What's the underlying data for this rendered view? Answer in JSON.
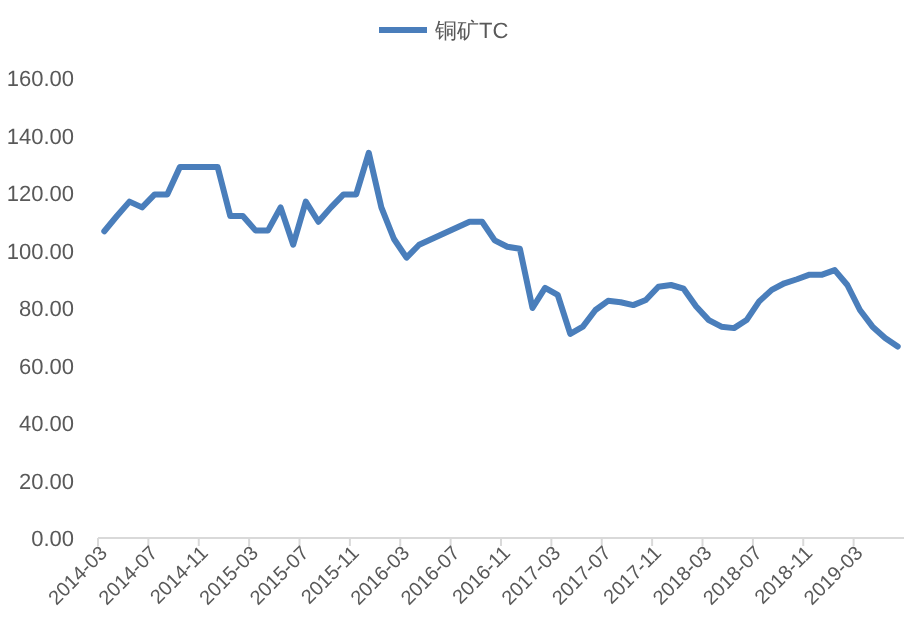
{
  "chart_data": {
    "type": "line",
    "legend": "top",
    "grid": false,
    "marker": "none",
    "line_style": "solid",
    "categories": [
      "2014-03",
      null,
      null,
      null,
      "2014-07",
      null,
      null,
      null,
      "2014-11",
      null,
      null,
      null,
      "2015-03",
      null,
      null,
      null,
      "2015-07",
      null,
      null,
      null,
      "2015-11",
      null,
      null,
      null,
      "2016-03",
      null,
      null,
      null,
      "2016-07",
      null,
      null,
      null,
      "2016-11",
      null,
      null,
      null,
      "2017-03",
      null,
      null,
      null,
      "2017-07",
      null,
      null,
      null,
      "2017-11",
      null,
      null,
      null,
      "2018-03",
      null,
      null,
      null,
      "2018-07",
      null,
      null,
      null,
      "2018-11",
      null,
      null,
      null,
      "2019-03",
      null,
      null,
      null
    ],
    "ylim": [
      0,
      160
    ],
    "yticks": [
      {
        "value": 0,
        "label": "0.00"
      },
      {
        "value": 20,
        "label": "20.00"
      },
      {
        "value": 40,
        "label": "40.00"
      },
      {
        "value": 60,
        "label": "60.00"
      },
      {
        "value": 80,
        "label": "80.00"
      },
      {
        "value": 100,
        "label": "100.00"
      },
      {
        "value": 120,
        "label": "120.00"
      },
      {
        "value": 140,
        "label": "140.00"
      },
      {
        "value": 160,
        "label": "160.00"
      }
    ],
    "series": [
      {
        "name": "铜矿TC",
        "color": "#4a7ebb",
        "values": [
          106.7,
          112,
          117,
          115,
          119.5,
          119.5,
          129,
          129,
          129,
          129,
          112,
          112,
          107,
          107,
          115,
          102,
          117,
          110,
          115,
          119.5,
          119.5,
          134,
          115,
          104,
          97.5,
          102,
          104,
          106,
          108,
          110,
          110,
          103.5,
          101.3,
          100.6,
          80,
          87,
          84.6,
          71,
          73.5,
          79.3,
          82.5,
          82,
          81,
          82.8,
          87.4,
          88,
          86.7,
          80.5,
          75.8,
          73.5,
          73,
          75.8,
          82.3,
          86.3,
          88.6,
          90,
          91.6,
          91.6,
          93.2,
          88,
          79.3,
          73.5,
          69.6,
          66.6
        ]
      }
    ]
  }
}
